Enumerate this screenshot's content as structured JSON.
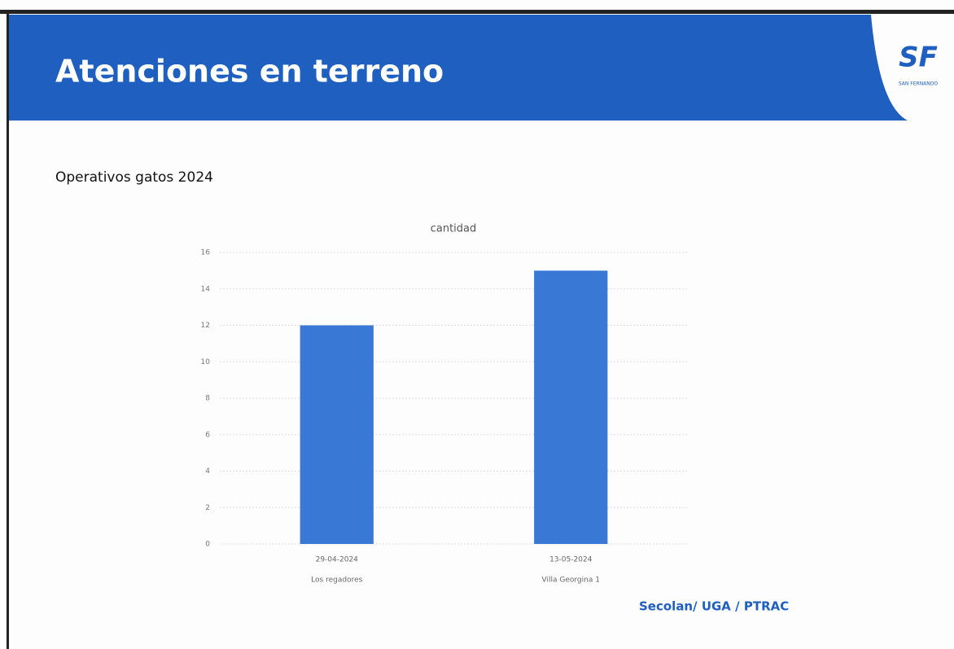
{
  "header": {
    "title": "Atenciones en terreno",
    "logo": "SF",
    "logo_caption": "SAN FERNANDO"
  },
  "subtitle": "Operativos gatos 2024",
  "chart_data": {
    "type": "bar",
    "title": "cantidad",
    "categories": [
      "29-04-2024",
      "13-05-2024"
    ],
    "sublabels": [
      "Los regadores",
      "Villa Georgina 1"
    ],
    "values": [
      12,
      15
    ],
    "color": "#3a78d6",
    "ylim": [
      0,
      16
    ],
    "yticks": [
      0,
      2,
      4,
      6,
      8,
      10,
      12,
      14,
      16
    ],
    "grid": true
  },
  "footer": "Secolan/ UGA / PTRAC"
}
